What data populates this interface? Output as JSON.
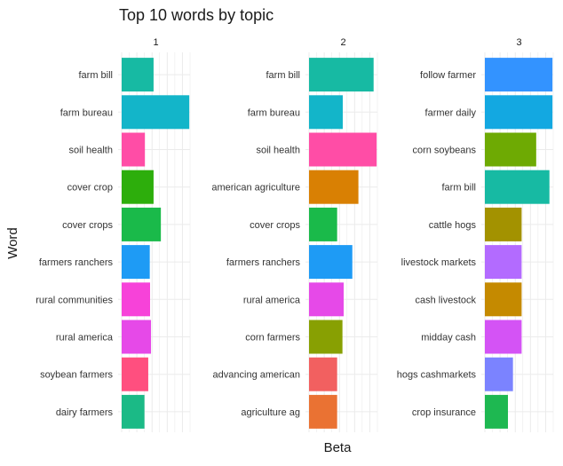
{
  "chart_data": {
    "type": "bar",
    "orientation": "horizontal",
    "title": "Top 10 words by topic",
    "xlabel": "Beta",
    "ylabel": "Word",
    "grid": true,
    "legend": "none",
    "facets": [
      {
        "strip_label": "1",
        "xlim": [
          0,
          0.045
        ],
        "bars": [
          {
            "word": "farm bill",
            "value": 0.021,
            "color": "#17BAA3"
          },
          {
            "word": "farm bureau",
            "value": 0.0445,
            "color": "#13B5C9"
          },
          {
            "word": "soil health",
            "value": 0.0153,
            "color": "#FF4DA6"
          },
          {
            "word": "cover crop",
            "value": 0.021,
            "color": "#2DAE0C"
          },
          {
            "word": "cover crops",
            "value": 0.0258,
            "color": "#1ABA4A"
          },
          {
            "word": "farmers ranchers",
            "value": 0.0185,
            "color": "#1E9BF5"
          },
          {
            "word": "rural communities",
            "value": 0.0187,
            "color": "#F742D9"
          },
          {
            "word": "rural america",
            "value": 0.0193,
            "color": "#E649E8"
          },
          {
            "word": "soybean farmers",
            "value": 0.0175,
            "color": "#FF4F7F"
          },
          {
            "word": "dairy farmers",
            "value": 0.015,
            "color": "#1BBA86"
          }
        ]
      },
      {
        "strip_label": "2",
        "xlim": [
          0,
          0.045
        ],
        "bars": [
          {
            "word": "farm bill",
            "value": 0.0425,
            "color": "#17BAA3"
          },
          {
            "word": "farm bureau",
            "value": 0.0222,
            "color": "#13B5C9"
          },
          {
            "word": "soil health",
            "value": 0.0445,
            "color": "#FF4DA6"
          },
          {
            "word": "american agriculture",
            "value": 0.0325,
            "color": "#D98003"
          },
          {
            "word": "cover crops",
            "value": 0.0185,
            "color": "#1ABA4A"
          },
          {
            "word": "farmers ranchers",
            "value": 0.0285,
            "color": "#1E9BF5"
          },
          {
            "word": "rural america",
            "value": 0.0228,
            "color": "#E649E8"
          },
          {
            "word": "corn farmers",
            "value": 0.022,
            "color": "#88A002"
          },
          {
            "word": "advancing american",
            "value": 0.0185,
            "color": "#F26060"
          },
          {
            "word": "agriculture ag",
            "value": 0.0185,
            "color": "#EA7233"
          }
        ]
      },
      {
        "strip_label": "3",
        "xlim": [
          0,
          0.045
        ],
        "bars": [
          {
            "word": "follow farmer",
            "value": 0.0445,
            "color": "#3393FF"
          },
          {
            "word": "farmer daily",
            "value": 0.0445,
            "color": "#13A8E1"
          },
          {
            "word": "corn soybeans",
            "value": 0.0338,
            "color": "#6EAA03"
          },
          {
            "word": "farm bill",
            "value": 0.0425,
            "color": "#17BAA3"
          },
          {
            "word": "cattle hogs",
            "value": 0.0242,
            "color": "#A39200"
          },
          {
            "word": "livestock markets",
            "value": 0.0242,
            "color": "#B36BFF"
          },
          {
            "word": "cash livestock",
            "value": 0.0242,
            "color": "#C58A00"
          },
          {
            "word": "midday cash",
            "value": 0.0242,
            "color": "#D453F5"
          },
          {
            "word": "hogs cashmarkets",
            "value": 0.0185,
            "color": "#7B83FF"
          },
          {
            "word": "crop insurance",
            "value": 0.0152,
            "color": "#1EB851"
          }
        ]
      }
    ]
  }
}
